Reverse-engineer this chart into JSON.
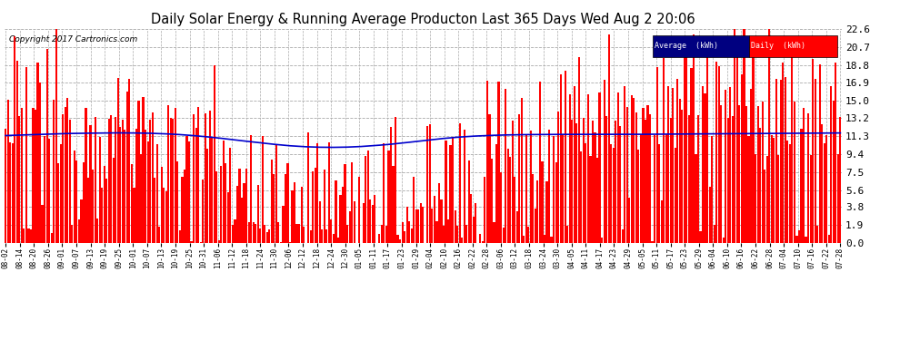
{
  "title": "Daily Solar Energy & Running Average Producton Last 365 Days Wed Aug 2 20:06",
  "copyright": "Copyright 2017 Cartronics.com",
  "yticks": [
    0.0,
    1.9,
    3.8,
    5.6,
    7.5,
    9.4,
    11.3,
    13.2,
    15.0,
    16.9,
    18.8,
    20.7,
    22.6
  ],
  "ymax": 22.6,
  "ymin": 0.0,
  "bar_color": "#ff0000",
  "avg_color": "#0000cc",
  "bg_color": "#ffffff",
  "grid_color": "#cccccc",
  "legend_avg_color": "#000080",
  "legend_bar_color": "#ff0000",
  "xtick_labels": [
    "08-02",
    "08-14",
    "08-20",
    "08-26",
    "09-01",
    "09-07",
    "09-13",
    "09-19",
    "09-25",
    "10-01",
    "10-07",
    "10-13",
    "10-19",
    "10-25",
    "10-31",
    "11-06",
    "11-12",
    "11-18",
    "11-24",
    "11-30",
    "12-06",
    "12-12",
    "12-18",
    "12-24",
    "12-30",
    "01-05",
    "01-11",
    "01-17",
    "01-23",
    "01-29",
    "02-04",
    "02-10",
    "02-16",
    "02-22",
    "02-28",
    "03-06",
    "03-12",
    "03-18",
    "03-24",
    "03-30",
    "04-05",
    "04-11",
    "04-17",
    "04-23",
    "04-29",
    "05-05",
    "05-11",
    "05-17",
    "05-23",
    "05-29",
    "06-04",
    "06-10",
    "06-16",
    "06-22",
    "06-28",
    "07-04",
    "07-10",
    "07-16",
    "07-22",
    "07-28"
  ],
  "num_bars": 365,
  "avg_values": [
    11.35,
    11.4,
    11.45,
    11.5,
    11.55,
    11.58,
    11.6,
    11.62,
    11.63,
    11.62,
    11.6,
    11.55,
    11.48,
    11.38,
    11.25,
    11.1,
    10.92,
    10.75,
    10.58,
    10.42,
    10.28,
    10.18,
    10.12,
    10.1,
    10.12,
    10.18,
    10.28,
    10.4,
    10.55,
    10.72,
    10.9,
    11.05,
    11.18,
    11.28,
    11.35,
    11.4,
    11.43,
    11.45,
    11.46,
    11.47,
    11.47,
    11.47,
    11.47,
    11.47,
    11.48,
    11.48,
    11.49,
    11.5,
    11.51,
    11.52,
    11.53,
    11.54,
    11.55,
    11.56,
    11.57,
    11.58,
    11.59,
    11.6,
    11.61,
    11.62
  ]
}
